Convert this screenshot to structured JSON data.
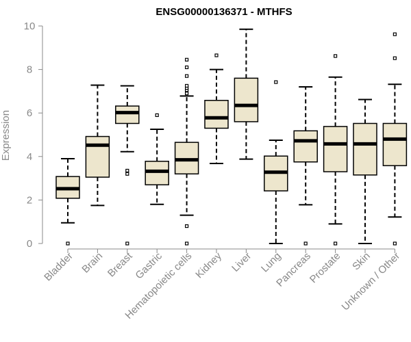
{
  "chart_data": {
    "type": "boxplot",
    "title": "ENSG00000136371 - MTHFS",
    "xlabel": "",
    "ylabel": "Expression",
    "ylim": [
      0,
      10
    ],
    "yticks": [
      0,
      2,
      4,
      6,
      8,
      10
    ],
    "colors": {
      "box_fill": "#ede6cd",
      "box_stroke": "#000000",
      "axis": "#888888"
    },
    "categories": [
      "Bladder",
      "Brain",
      "Breast",
      "Gastric",
      "Hematopoietic cells",
      "Kidney",
      "Liver",
      "Lung",
      "Pancreas",
      "Prostate",
      "Skin",
      "Unknown / Other"
    ],
    "boxes": [
      {
        "min": 0.95,
        "q1": 2.08,
        "median": 2.52,
        "q3": 3.08,
        "max": 3.9,
        "outliers": [
          0.0
        ]
      },
      {
        "min": 1.75,
        "q1": 3.05,
        "median": 4.52,
        "q3": 4.92,
        "max": 7.28,
        "outliers": []
      },
      {
        "min": 4.22,
        "q1": 5.52,
        "median": 6.02,
        "q3": 6.32,
        "max": 7.25,
        "outliers": [
          0.0,
          3.2,
          3.35
        ]
      },
      {
        "min": 1.8,
        "q1": 2.7,
        "median": 3.32,
        "q3": 3.78,
        "max": 5.25,
        "outliers": [
          5.9
        ]
      },
      {
        "min": 1.3,
        "q1": 3.2,
        "median": 3.85,
        "q3": 4.65,
        "max": 6.78,
        "outliers": [
          0.0,
          0.8,
          6.9,
          7.05,
          7.15,
          7.25,
          7.7,
          8.1,
          8.45
        ]
      },
      {
        "min": 3.68,
        "q1": 5.3,
        "median": 5.78,
        "q3": 6.58,
        "max": 8.0,
        "outliers": [
          8.65
        ]
      },
      {
        "min": 3.88,
        "q1": 5.6,
        "median": 6.35,
        "q3": 7.6,
        "max": 9.85,
        "outliers": []
      },
      {
        "min": 0.0,
        "q1": 2.42,
        "median": 3.28,
        "q3": 4.02,
        "max": 4.75,
        "outliers": [
          7.42
        ]
      },
      {
        "min": 1.78,
        "q1": 3.75,
        "median": 4.72,
        "q3": 5.18,
        "max": 7.2,
        "outliers": [
          0.0
        ]
      },
      {
        "min": 0.9,
        "q1": 3.3,
        "median": 4.58,
        "q3": 5.38,
        "max": 7.65,
        "outliers": [
          0.0,
          8.62
        ]
      },
      {
        "min": 0.0,
        "q1": 3.15,
        "median": 4.58,
        "q3": 5.52,
        "max": 6.62,
        "outliers": []
      },
      {
        "min": 1.22,
        "q1": 3.58,
        "median": 4.8,
        "q3": 5.52,
        "max": 7.32,
        "outliers": [
          0.0,
          8.52,
          9.62
        ]
      }
    ]
  }
}
